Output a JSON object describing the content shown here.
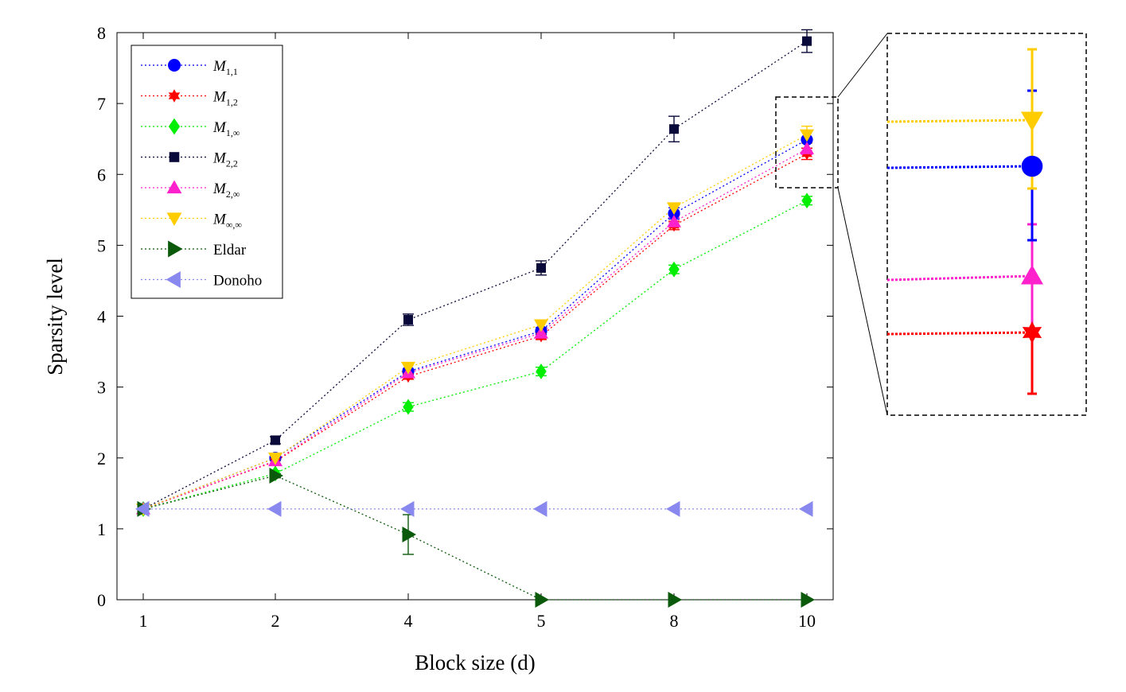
{
  "chart_data": {
    "type": "line",
    "title": "",
    "xlabel": "Block size (d)",
    "ylabel": "Sparsity level",
    "categories": [
      "1",
      "2",
      "4",
      "5",
      "8",
      "10"
    ],
    "ylim": [
      0,
      8
    ],
    "yticks": [
      0,
      1,
      2,
      3,
      4,
      5,
      6,
      7,
      8
    ],
    "grid": false,
    "legend_position": "top-left",
    "series": [
      {
        "name": "M",
        "sub": "1,1",
        "italic": true,
        "color": "#0000ff",
        "marker": "circle",
        "values": [
          1.28,
          2.0,
          3.22,
          3.79,
          5.45,
          6.49
        ],
        "errors": [
          0,
          0.04,
          0.04,
          0.05,
          0.08,
          0.12
        ]
      },
      {
        "name": "M",
        "sub": "1,2",
        "italic": true,
        "color": "#ff0000",
        "marker": "star",
        "values": [
          1.28,
          1.95,
          3.15,
          3.72,
          5.28,
          6.29
        ],
        "errors": [
          0,
          0.04,
          0.04,
          0.05,
          0.06,
          0.08
        ]
      },
      {
        "name": "M",
        "sub": "1,∞",
        "italic": true,
        "color": "#00ee00",
        "marker": "diamond",
        "values": [
          1.28,
          1.78,
          2.72,
          3.22,
          4.66,
          5.63
        ],
        "errors": [
          0,
          0.04,
          0.06,
          0.06,
          0.06,
          0.06
        ]
      },
      {
        "name": "M",
        "sub": "2,2",
        "italic": true,
        "color": "#0a0a3a",
        "marker": "square",
        "values": [
          1.28,
          2.25,
          3.95,
          4.68,
          6.64,
          7.88
        ],
        "errors": [
          0,
          0.05,
          0.08,
          0.1,
          0.18,
          0.16
        ]
      },
      {
        "name": "M",
        "sub": "2,∞",
        "italic": true,
        "color": "#ff22cc",
        "marker": "triangle-up",
        "values": [
          1.28,
          1.96,
          3.2,
          3.76,
          5.33,
          6.36
        ],
        "errors": [
          0,
          0.04,
          0.04,
          0.05,
          0.06,
          0.08
        ]
      },
      {
        "name": "M",
        "sub": "∞,∞",
        "italic": true,
        "color": "#ffcc00",
        "marker": "triangle-down",
        "values": [
          1.28,
          2.0,
          3.28,
          3.88,
          5.53,
          6.56
        ],
        "errors": [
          0,
          0.04,
          0.04,
          0.05,
          0.06,
          0.12
        ]
      },
      {
        "name": "Eldar",
        "sub": "",
        "italic": false,
        "color": "#0b5a0b",
        "marker": "triangle-right",
        "values": [
          1.28,
          1.75,
          0.92,
          0.0,
          0.0,
          0.0
        ],
        "errors": [
          0,
          0.03,
          0.28,
          0,
          0,
          0
        ]
      },
      {
        "name": "Donoho",
        "sub": "",
        "italic": false,
        "color": "#8888ee",
        "marker": "triangle-left",
        "values": [
          1.28,
          1.28,
          1.28,
          1.28,
          1.28,
          1.28
        ],
        "errors": [
          0,
          0,
          0,
          0,
          0,
          0
        ]
      }
    ],
    "inset": {
      "description_shown": "zoom of d=10 region",
      "order_shown": [
        "M∞,∞",
        "M1,1",
        "M2,∞",
        "M1,2"
      ]
    }
  }
}
